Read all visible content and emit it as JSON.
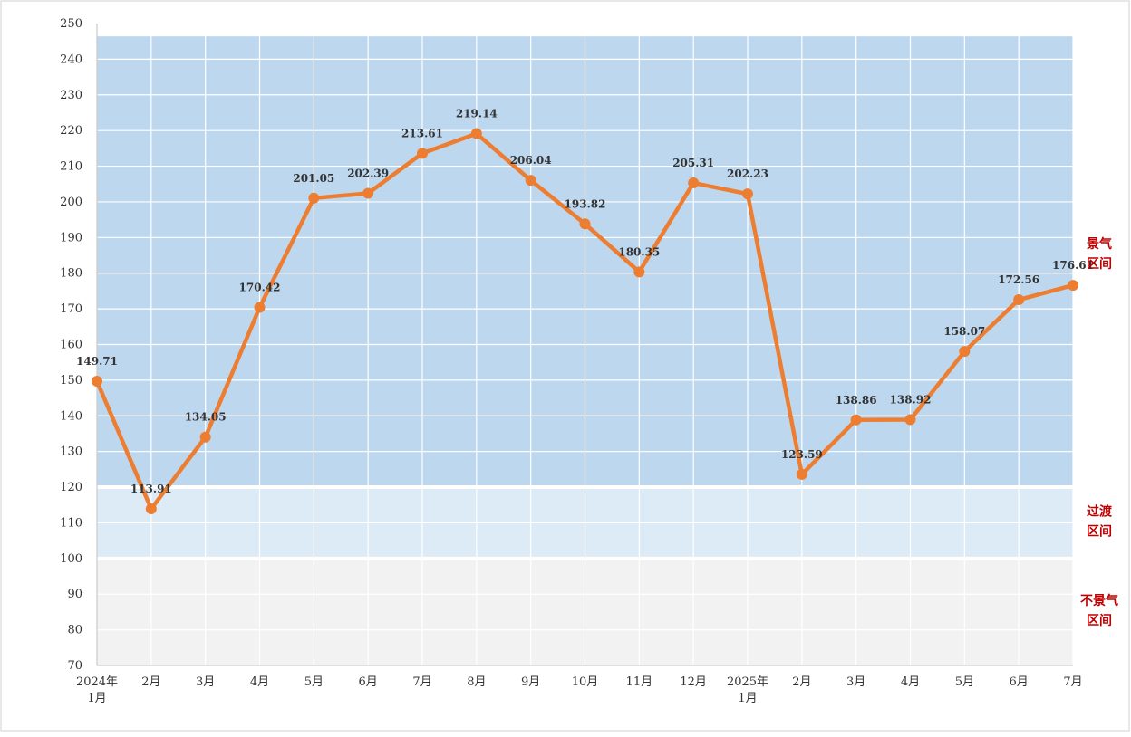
{
  "chart_data": {
    "type": "line",
    "title": "",
    "xlabel": "",
    "ylabel": "",
    "ylim": [
      70,
      250
    ],
    "yticks": [
      70,
      80,
      90,
      100,
      110,
      120,
      130,
      140,
      150,
      160,
      170,
      180,
      190,
      200,
      210,
      220,
      230,
      240,
      250
    ],
    "grid": true,
    "categories": [
      [
        "2024年",
        "1月"
      ],
      [
        "2月"
      ],
      [
        "3月"
      ],
      [
        "4月"
      ],
      [
        "5月"
      ],
      [
        "6月"
      ],
      [
        "7月"
      ],
      [
        "8月"
      ],
      [
        "9月"
      ],
      [
        "10月"
      ],
      [
        "11月"
      ],
      [
        "12月"
      ],
      [
        "2025年",
        "1月"
      ],
      [
        "2月"
      ],
      [
        "3月"
      ],
      [
        "4月"
      ],
      [
        "5月"
      ],
      [
        "6月"
      ],
      [
        "7月"
      ]
    ],
    "series": [
      {
        "values": [
          149.71,
          113.91,
          134.05,
          170.42,
          201.05,
          202.39,
          213.61,
          219.14,
          206.04,
          193.82,
          180.35,
          205.31,
          202.23,
          123.59,
          138.86,
          138.92,
          158.07,
          172.56,
          176.61
        ],
        "labels": [
          "149.71",
          "113.91",
          "134.05",
          "170.42",
          "201.05",
          "202.39",
          "213.61",
          "219.14",
          "206.04",
          "193.82",
          "180.35",
          "205.31",
          "202.23",
          "123.59",
          "138.86",
          "138.92",
          "158.07",
          "172.56",
          "176.61"
        ],
        "color": "#ED7D31"
      }
    ],
    "bands": [
      {
        "from": 120,
        "to": 250,
        "label": [
          "景气",
          "区间"
        ],
        "fill": "#BDD7EE"
      },
      {
        "from": 100,
        "to": 120,
        "label": [
          "过渡",
          "区间"
        ],
        "fill": "#DDEBF7"
      },
      {
        "from": 70,
        "to": 100,
        "label": [
          "不景气",
          "区间"
        ],
        "fill": "#F2F2F2"
      }
    ],
    "zone_label_color": "#C00000"
  }
}
